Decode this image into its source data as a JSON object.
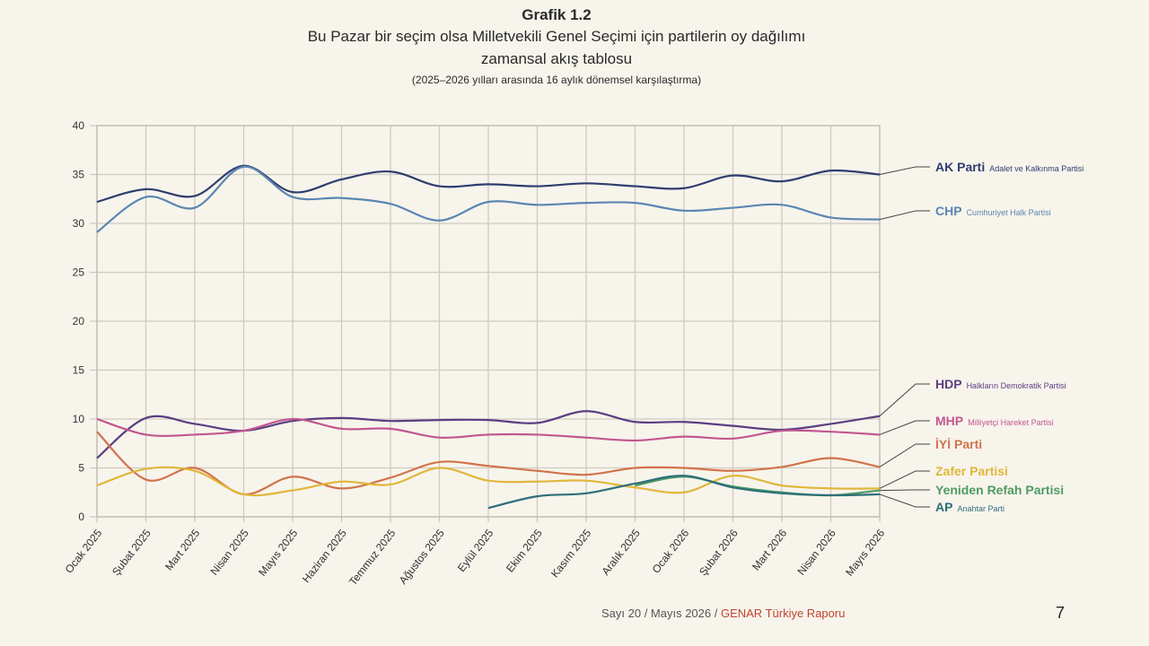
{
  "header": {
    "label": "Grafik 1.2",
    "title_line1": "Bu Pazar bir seçim olsa Milletvekili Genel Seçimi için partilerin oy dağılımı",
    "title_line2": "zamansal akış tablosu",
    "subtitle": "(2025–2026 yılları arasında 16 aylık dönemsel karşılaştırma)"
  },
  "footer": {
    "issue": "Sayı 20 / Mayıs 2026 / ",
    "brand": "GENAR Türkiye Raporu",
    "page_number": "7"
  },
  "chart_data": {
    "type": "line",
    "grid": true,
    "ylim": [
      0,
      40
    ],
    "yticks": [
      0,
      5,
      10,
      15,
      20,
      25,
      30,
      35,
      40
    ],
    "x": [
      "Ocak 2025",
      "Şubat 2025",
      "Mart 2025",
      "Nisan 2025",
      "Mayıs 2025",
      "Haziran 2025",
      "Temmuz 2025",
      "Ağustos 2025",
      "Eylül 2025",
      "Ekim 2025",
      "Kasım 2025",
      "Aralık 2025",
      "Ocak 2026",
      "Şubat 2026",
      "Mart 2026",
      "Nisan 2026",
      "Mayıs 2026"
    ],
    "legend_position": "right",
    "series": [
      {
        "name": "AK Parti",
        "full_name": "Adalet ve Kalkınma Partisi",
        "color": "#2f3d6e",
        "values": [
          32.2,
          33.5,
          32.8,
          35.9,
          33.2,
          34.5,
          35.3,
          33.8,
          34.0,
          33.8,
          34.1,
          33.8,
          33.6,
          34.9,
          34.3,
          35.4,
          35.0
        ]
      },
      {
        "name": "CHP",
        "full_name": "Cumhuriyet Halk Partisi",
        "color": "#5b86b0",
        "values": [
          29.1,
          32.7,
          31.6,
          35.8,
          32.7,
          32.6,
          32.0,
          30.3,
          32.2,
          31.9,
          32.1,
          32.1,
          31.3,
          31.6,
          31.9,
          30.6,
          30.4
        ]
      },
      {
        "name": "HDP",
        "full_name": "Halkların Demokratik Partisi",
        "color": "#5c3d82",
        "values": [
          6.0,
          10.1,
          9.5,
          8.8,
          9.8,
          10.1,
          9.8,
          9.9,
          9.9,
          9.6,
          10.8,
          9.7,
          9.7,
          9.3,
          8.9,
          9.5,
          10.3
        ]
      },
      {
        "name": "MHP",
        "full_name": "Milliyetçi Hareket Partisi",
        "color": "#c2578f",
        "values": [
          10.0,
          8.4,
          8.4,
          8.8,
          10.0,
          9.0,
          9.0,
          8.1,
          8.4,
          8.4,
          8.1,
          7.8,
          8.2,
          8.0,
          8.8,
          8.7,
          8.4
        ]
      },
      {
        "name": "İYİ Parti",
        "full_name": "",
        "color": "#d1734a",
        "values": [
          8.7,
          3.8,
          5.0,
          2.3,
          4.1,
          2.9,
          4.0,
          5.6,
          5.2,
          4.7,
          4.3,
          5.0,
          5.0,
          4.7,
          5.1,
          6.0,
          5.1
        ]
      },
      {
        "name": "Zafer Partisi",
        "full_name": "",
        "color": "#e0b73a",
        "values": [
          3.2,
          4.9,
          4.7,
          2.3,
          2.7,
          3.6,
          3.3,
          5.0,
          3.7,
          3.6,
          3.7,
          3.0,
          2.5,
          4.2,
          3.2,
          2.9,
          2.9
        ]
      },
      {
        "name": "Yeniden Refah Partisi",
        "full_name": "",
        "color": "#4e9b63",
        "values": [
          null,
          null,
          null,
          null,
          null,
          null,
          null,
          null,
          null,
          null,
          null,
          3.2,
          4.1,
          3.1,
          2.5,
          2.2,
          2.7
        ]
      },
      {
        "name": "AP",
        "full_name": "Anahtar Parti",
        "color": "#2c6f7a",
        "values": [
          null,
          null,
          null,
          null,
          null,
          null,
          null,
          null,
          0.9,
          2.1,
          2.4,
          3.4,
          4.2,
          3.0,
          2.4,
          2.2,
          2.3
        ]
      }
    ]
  }
}
